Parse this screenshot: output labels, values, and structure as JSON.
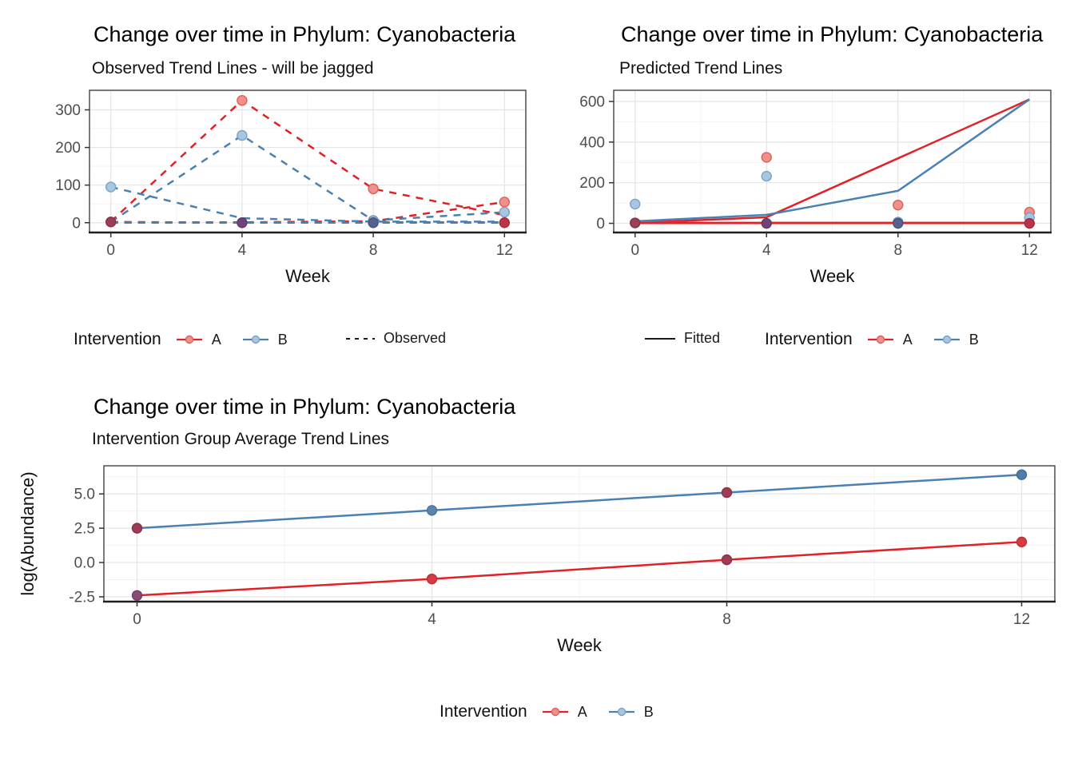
{
  "colors": {
    "a": "#e02127",
    "b": "#4a80b2",
    "a_point": "#f0908c",
    "a_point_stroke": "#dd5f58",
    "b_point": "#a9c6e0",
    "b_point_stroke": "#7aa3c7",
    "key_line": "#1a1a1a",
    "tick_text": "#4d4d4d",
    "axis_text": "#111111",
    "grid_major": "#e4e4e4",
    "grid_minor": "#f3f3f3",
    "panel_border": "#333333",
    "axis_line": "#1f1f1f"
  },
  "chart_data": [
    {
      "type": "line",
      "title": "Change over time in Phylum: Cyanobacteria",
      "subtitle": "Observed Trend Lines - will be jagged",
      "xlabel": "Week",
      "ylabel": "",
      "xlim": [
        -0.65,
        12.65
      ],
      "ylim": [
        -26,
        352
      ],
      "xticks": [
        {
          "v": 0,
          "label": "0"
        },
        {
          "v": 4,
          "label": "4"
        },
        {
          "v": 8,
          "label": "8"
        },
        {
          "v": 12,
          "label": "12"
        }
      ],
      "yticks": [
        {
          "v": 0,
          "label": "0"
        },
        {
          "v": 100,
          "label": "100"
        },
        {
          "v": 200,
          "label": "200"
        },
        {
          "v": 300,
          "label": "300"
        }
      ],
      "xminor": [
        2,
        6,
        10
      ],
      "yminor": [
        50,
        150,
        250,
        350
      ],
      "grid": true,
      "legend_position": "bottom",
      "lines": [
        {
          "name": "A-subject-1",
          "color": "a",
          "dash": true,
          "points": [
            [
              0,
              3
            ],
            [
              4,
              325
            ],
            [
              8,
              90
            ],
            [
              12,
              20
            ]
          ]
        },
        {
          "name": "A-subject-2",
          "color": "a",
          "dash": true,
          "points": [
            [
              0,
              1
            ],
            [
              4,
              1
            ],
            [
              8,
              4
            ],
            [
              12,
              55
            ]
          ]
        },
        {
          "name": "A-subject-3",
          "color": "a",
          "dash": true,
          "points": [
            [
              0,
              2
            ],
            [
              4,
              0
            ],
            [
              8,
              1
            ],
            [
              12,
              1
            ]
          ]
        },
        {
          "name": "B-subject-1",
          "color": "b",
          "dash": true,
          "points": [
            [
              0,
              95
            ],
            [
              4,
              12
            ],
            [
              8,
              3
            ],
            [
              12,
              3
            ]
          ]
        },
        {
          "name": "B-subject-2",
          "color": "b",
          "dash": true,
          "points": [
            [
              0,
              2
            ],
            [
              4,
              232
            ],
            [
              8,
              6
            ],
            [
              12,
              28
            ]
          ]
        },
        {
          "name": "B-subject-3",
          "color": "b",
          "dash": true,
          "points": [
            [
              0,
              0
            ],
            [
              4,
              0
            ],
            [
              8,
              0
            ],
            [
              12,
              0
            ]
          ]
        }
      ],
      "dots": [
        {
          "x": 0,
          "y": 95,
          "fill": "#a9c6e0",
          "stroke": "#7aa3c7"
        },
        {
          "x": 0,
          "y": 2,
          "fill": "#9a3f55",
          "stroke": "#84344a"
        },
        {
          "x": 4,
          "y": 325,
          "fill": "#f0908c",
          "stroke": "#dd5f58"
        },
        {
          "x": 4,
          "y": 232,
          "fill": "#a9c6e0",
          "stroke": "#7aa3c7"
        },
        {
          "x": 4,
          "y": 0,
          "fill": "#6f4577",
          "stroke": "#5d3a66"
        },
        {
          "x": 8,
          "y": 90,
          "fill": "#f0908c",
          "stroke": "#dd5f58"
        },
        {
          "x": 8,
          "y": 6,
          "fill": "#9dbcd8",
          "stroke": "#6f95bb"
        },
        {
          "x": 8,
          "y": 0,
          "fill": "#55618e",
          "stroke": "#47537d"
        },
        {
          "x": 12,
          "y": 55,
          "fill": "#f0908c",
          "stroke": "#dd5f58"
        },
        {
          "x": 12,
          "y": 28,
          "fill": "#a9c6e0",
          "stroke": "#7aa3c7"
        },
        {
          "x": 12,
          "y": 0,
          "fill": "#bb3347",
          "stroke": "#a12c3e"
        }
      ]
    },
    {
      "type": "line",
      "title": "Change over time in Phylum: Cyanobacteria",
      "subtitle": "Predicted Trend Lines",
      "xlabel": "Week",
      "ylabel": "",
      "xlim": [
        -0.65,
        12.65
      ],
      "ylim": [
        -45,
        655
      ],
      "xticks": [
        {
          "v": 0,
          "label": "0"
        },
        {
          "v": 4,
          "label": "4"
        },
        {
          "v": 8,
          "label": "8"
        },
        {
          "v": 12,
          "label": "12"
        }
      ],
      "yticks": [
        {
          "v": 0,
          "label": "0"
        },
        {
          "v": 200,
          "label": "200"
        },
        {
          "v": 400,
          "label": "400"
        },
        {
          "v": 600,
          "label": "600"
        }
      ],
      "xminor": [
        2,
        6,
        10
      ],
      "yminor": [
        100,
        300,
        500
      ],
      "grid": true,
      "legend_position": "bottom",
      "lines": [
        {
          "name": "A-fitted-rising",
          "color": "a",
          "dash": false,
          "points": [
            [
              0,
              2
            ],
            [
              4,
              30
            ],
            [
              8,
              320
            ],
            [
              12,
              610
            ]
          ]
        },
        {
          "name": "B-fitted-rising",
          "color": "b",
          "dash": false,
          "points": [
            [
              0,
              10
            ],
            [
              4,
              42
            ],
            [
              8,
              160
            ],
            [
              12,
              610
            ]
          ]
        },
        {
          "name": "B-fitted-flat",
          "color": "b",
          "dash": false,
          "points": [
            [
              0,
              3
            ],
            [
              12,
              3
            ]
          ]
        },
        {
          "name": "A-fitted-flat",
          "color": "a",
          "dash": false,
          "points": [
            [
              0,
              1
            ],
            [
              12,
              1
            ]
          ]
        }
      ],
      "dots": [
        {
          "x": 0,
          "y": 95,
          "fill": "#a9c6e0",
          "stroke": "#7aa3c7"
        },
        {
          "x": 0,
          "y": 2,
          "fill": "#9a3f55",
          "stroke": "#84344a"
        },
        {
          "x": 4,
          "y": 325,
          "fill": "#f0908c",
          "stroke": "#dd5f58"
        },
        {
          "x": 4,
          "y": 232,
          "fill": "#a9c6e0",
          "stroke": "#7aa3c7"
        },
        {
          "x": 4,
          "y": 0,
          "fill": "#6f4577",
          "stroke": "#5d3a66"
        },
        {
          "x": 8,
          "y": 90,
          "fill": "#f0908c",
          "stroke": "#dd5f58"
        },
        {
          "x": 8,
          "y": 6,
          "fill": "#9dbcd8",
          "stroke": "#6f95bb"
        },
        {
          "x": 8,
          "y": 0,
          "fill": "#55618e",
          "stroke": "#47537d"
        },
        {
          "x": 12,
          "y": 55,
          "fill": "#f0908c",
          "stroke": "#dd5f58"
        },
        {
          "x": 12,
          "y": 28,
          "fill": "#a9c6e0",
          "stroke": "#7aa3c7"
        },
        {
          "x": 12,
          "y": 0,
          "fill": "#bb3347",
          "stroke": "#a12c3e"
        }
      ]
    },
    {
      "type": "line",
      "title": "Change over time in Phylum: Cyanobacteria",
      "subtitle": "Intervention Group Average Trend Lines",
      "xlabel": "Week",
      "ylabel": "log(Abundance)",
      "xlim": [
        -0.45,
        12.45
      ],
      "ylim": [
        -2.85,
        7.05
      ],
      "xticks": [
        {
          "v": 0,
          "label": "0"
        },
        {
          "v": 4,
          "label": "4"
        },
        {
          "v": 8,
          "label": "8"
        },
        {
          "v": 12,
          "label": "12"
        }
      ],
      "yticks": [
        {
          "v": -2.5,
          "label": "-2.5"
        },
        {
          "v": 0,
          "label": "0.0"
        },
        {
          "v": 2.5,
          "label": "2.5"
        },
        {
          "v": 5,
          "label": "5.0"
        }
      ],
      "xminor": [
        2,
        6,
        10
      ],
      "yminor": [
        -1.25,
        1.25,
        3.75,
        6.25
      ],
      "grid": true,
      "legend_position": "bottom",
      "lines": [
        {
          "name": "B-group-average",
          "color": "b",
          "dash": false,
          "points": [
            [
              0,
              2.5
            ],
            [
              4,
              3.8
            ],
            [
              8,
              5.1
            ],
            [
              12,
              6.4
            ]
          ]
        },
        {
          "name": "A-group-average",
          "color": "a",
          "dash": false,
          "points": [
            [
              0,
              -2.4
            ],
            [
              4,
              -1.2
            ],
            [
              8,
              0.2
            ],
            [
              12,
              1.5
            ]
          ]
        }
      ],
      "dots": [
        {
          "x": 0,
          "y": 2.5,
          "fill": "#a03a55",
          "stroke": "#8a3148"
        },
        {
          "x": 4,
          "y": 3.8,
          "fill": "#5c85ad",
          "stroke": "#4d739a"
        },
        {
          "x": 8,
          "y": 5.1,
          "fill": "#a03a55",
          "stroke": "#8a3148"
        },
        {
          "x": 12,
          "y": 6.4,
          "fill": "#4f7cab",
          "stroke": "#426b97"
        },
        {
          "x": 0,
          "y": -2.4,
          "fill": "#8a4a76",
          "stroke": "#753d64"
        },
        {
          "x": 4,
          "y": -1.2,
          "fill": "#d63b44",
          "stroke": "#bd2f38"
        },
        {
          "x": 8,
          "y": 0.2,
          "fill": "#a03a55",
          "stroke": "#8a3148"
        },
        {
          "x": 12,
          "y": 1.5,
          "fill": "#d63b44",
          "stroke": "#bd2f38"
        }
      ]
    }
  ],
  "legends": {
    "observed": {
      "title": "Intervention",
      "items": [
        {
          "label": "A"
        },
        {
          "label": "B"
        }
      ],
      "linetype_label": "Observed"
    },
    "fitted": {
      "linetype_label": "Fitted",
      "title": "Intervention",
      "items": [
        {
          "label": "A"
        },
        {
          "label": "B"
        }
      ]
    },
    "average": {
      "title": "Intervention",
      "items": [
        {
          "label": "A"
        },
        {
          "label": "B"
        }
      ]
    }
  }
}
